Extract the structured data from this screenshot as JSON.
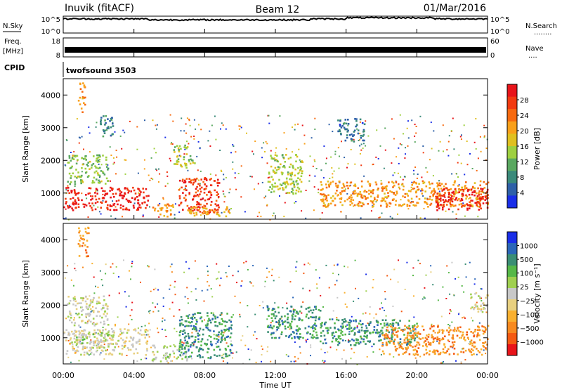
{
  "header": {
    "title": "Inuvik (fitACF)",
    "beam": "Beam 12",
    "date": "01/Mar/2016"
  },
  "strip_panels": {
    "nsky": {
      "left_label": "N.Sky",
      "left_ticks": [
        "10^5",
        "10^0"
      ],
      "right_ticks": [
        "10^5",
        "10^0"
      ],
      "right_label": "N.Search",
      "right_key": "........"
    },
    "freq": {
      "left_label_1": "Freq.",
      "left_label_2": "[MHz]",
      "left_ticks": [
        "18",
        "8"
      ],
      "right_ticks": [
        "60",
        "0"
      ],
      "right_label": "Nave",
      "right_key": "...."
    },
    "cpid": {
      "label": "CPID",
      "value": "twofsound 3503"
    }
  },
  "power_panel": {
    "ylabel": "Slant Range [km]",
    "yticks": [
      "4000",
      "3000",
      "2000",
      "1000"
    ],
    "colorbar_label": "Power [dB]",
    "colorbar_ticks": [
      "28",
      "24",
      "20",
      "16",
      "12",
      "8",
      "4"
    ],
    "colorbar_colors": [
      "#e8141a",
      "#f23a10",
      "#f76a10",
      "#f9a01a",
      "#e0c020",
      "#9ed040",
      "#5aa860",
      "#3a8a7a",
      "#2e60a8",
      "#1a2ee8"
    ]
  },
  "velocity_panel": {
    "ylabel": "Slant Range [km]",
    "yticks": [
      "4000",
      "3000",
      "2000",
      "1000"
    ],
    "colorbar_label": "Velocity [m s⁻¹]",
    "colorbar_ticks": [
      "1000",
      "500",
      "100",
      "25",
      "−25",
      "−100",
      "−500",
      "−1000"
    ],
    "colorbar_colors": [
      "#1a2ee8",
      "#2a66b8",
      "#3a8e74",
      "#56b848",
      "#a0d050",
      "#c8c8c8",
      "#e8d080",
      "#f9b030",
      "#f78a20",
      "#f45a12",
      "#e8141a"
    ]
  },
  "xaxis": {
    "label": "Time UT",
    "ticks": [
      "00:00",
      "04:00",
      "08:00",
      "12:00",
      "16:00",
      "20:00",
      "00:00"
    ]
  },
  "chart_data": {
    "type": "heatmap",
    "title": "Inuvik (fitACF)",
    "subtitle": "Beam 12 01/Mar/2016",
    "xlabel": "Time UT",
    "ylabel": "Slant Range [km]",
    "x_range_hours": [
      0,
      24
    ],
    "y_range_km": [
      200,
      4500
    ],
    "panels": [
      {
        "name": "Power",
        "unit": "dB",
        "color_range": [
          0,
          30
        ],
        "regions": [
          {
            "t0": 0.0,
            "t1": 4.8,
            "r0": 500,
            "r1": 1200,
            "value": 28
          },
          {
            "t0": 0.2,
            "t1": 2.5,
            "r0": 1300,
            "r1": 2200,
            "value": 12
          },
          {
            "t0": 0.8,
            "t1": 1.2,
            "r0": 3500,
            "r1": 4400,
            "value": 20
          },
          {
            "t0": 2.0,
            "t1": 2.8,
            "r0": 2700,
            "r1": 3400,
            "value": 8
          },
          {
            "t0": 5.0,
            "t1": 6.2,
            "r0": 300,
            "r1": 700,
            "value": 20
          },
          {
            "t0": 6.5,
            "t1": 8.8,
            "r0": 400,
            "r1": 1500,
            "value": 26
          },
          {
            "t0": 6.2,
            "t1": 7.4,
            "r0": 1800,
            "r1": 2500,
            "value": 14
          },
          {
            "t0": 7.0,
            "t1": 9.5,
            "r0": 300,
            "r1": 600,
            "value": 18
          },
          {
            "t0": 11.5,
            "t1": 13.5,
            "r0": 1000,
            "r1": 2200,
            "value": 14
          },
          {
            "t0": 14.5,
            "t1": 24.0,
            "r0": 600,
            "r1": 1400,
            "value": 20
          },
          {
            "t0": 21.0,
            "t1": 24.0,
            "r0": 500,
            "r1": 1200,
            "value": 28
          },
          {
            "t0": 15.5,
            "t1": 17.0,
            "r0": 2600,
            "r1": 3300,
            "value": 6
          }
        ]
      },
      {
        "name": "Velocity",
        "unit": "m s^-1",
        "color_range": [
          -1000,
          1000
        ],
        "regions": [
          {
            "t0": 0.0,
            "t1": 4.8,
            "r0": 500,
            "r1": 1300,
            "value": -100
          },
          {
            "t0": 0.6,
            "t1": 2.8,
            "r0": 700,
            "r1": 1200,
            "value": 100
          },
          {
            "t0": 0.2,
            "t1": 2.5,
            "r0": 1400,
            "r1": 2300,
            "value": 0
          },
          {
            "t0": 0.8,
            "t1": 1.4,
            "r0": 3500,
            "r1": 4400,
            "value": -500
          },
          {
            "t0": 5.0,
            "t1": 7.0,
            "r0": 300,
            "r1": 800,
            "value": 100
          },
          {
            "t0": 6.5,
            "t1": 9.5,
            "r0": 400,
            "r1": 1800,
            "value": 500
          },
          {
            "t0": 11.5,
            "t1": 14.5,
            "r0": 1000,
            "r1": 2000,
            "value": 500
          },
          {
            "t0": 14.5,
            "t1": 20.0,
            "r0": 800,
            "r1": 1600,
            "value": 500
          },
          {
            "t0": 18.0,
            "t1": 24.0,
            "r0": 500,
            "r1": 1400,
            "value": -500
          },
          {
            "t0": 23.0,
            "t1": 24.0,
            "r0": 1800,
            "r1": 2400,
            "value": 0
          }
        ]
      }
    ],
    "strip_series": {
      "n_sky_log10": {
        "y_range": [
          0,
          5
        ],
        "typical": 4.2
      },
      "freq_mhz": {
        "y_range": [
          8,
          18
        ],
        "typical": 10.5
      },
      "nave": {
        "y_range": [
          0,
          60
        ],
        "typical": 20
      }
    }
  }
}
